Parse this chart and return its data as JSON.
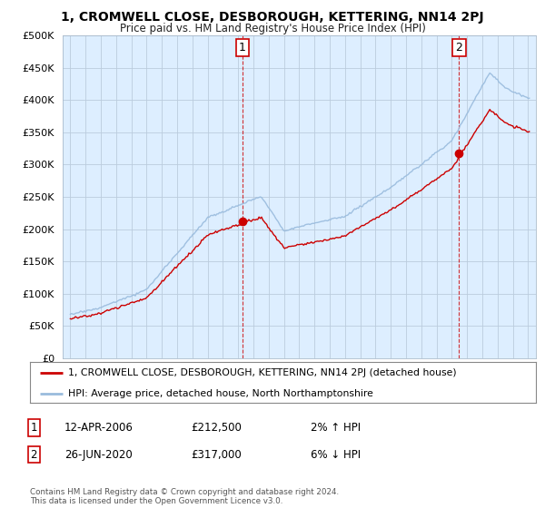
{
  "title1": "1, CROMWELL CLOSE, DESBOROUGH, KETTERING, NN14 2PJ",
  "title2": "Price paid vs. HM Land Registry's House Price Index (HPI)",
  "ytick_vals": [
    0,
    50000,
    100000,
    150000,
    200000,
    250000,
    300000,
    350000,
    400000,
    450000,
    500000
  ],
  "sale1": {
    "date_x": 2006.28,
    "price": 212500,
    "label": "1"
  },
  "sale2": {
    "date_x": 2020.48,
    "price": 317000,
    "label": "2"
  },
  "legend_line1": "1, CROMWELL CLOSE, DESBOROUGH, KETTERING, NN14 2PJ (detached house)",
  "legend_line2": "HPI: Average price, detached house, North Northamptonshire",
  "table_row1": [
    "1",
    "12-APR-2006",
    "£212,500",
    "2% ↑ HPI"
  ],
  "table_row2": [
    "2",
    "26-JUN-2020",
    "£317,000",
    "6% ↓ HPI"
  ],
  "footer": "Contains HM Land Registry data © Crown copyright and database right 2024.\nThis data is licensed under the Open Government Licence v3.0.",
  "line_color_red": "#cc0000",
  "line_color_blue": "#99bbdd",
  "chart_bg": "#ddeeff",
  "background_color": "#ffffff",
  "grid_color": "#bbccdd",
  "xmin": 1994.5,
  "xmax": 2025.5
}
